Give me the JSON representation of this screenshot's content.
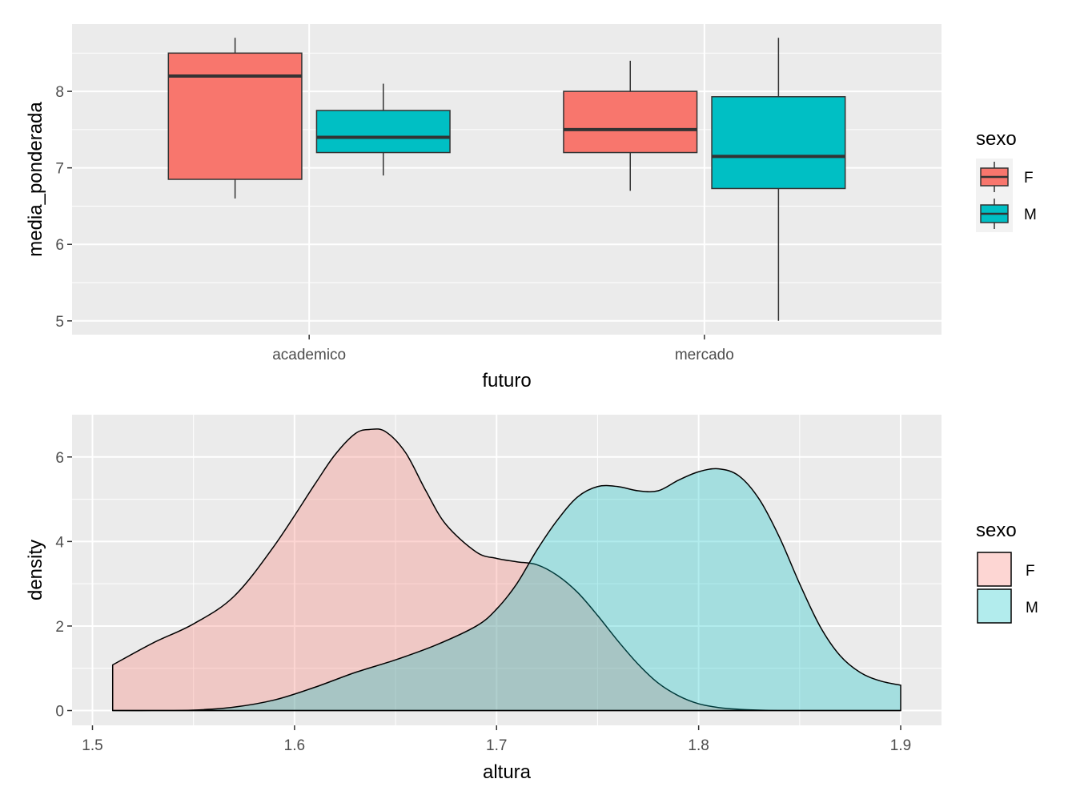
{
  "chart_data": [
    {
      "type": "boxplot",
      "xlabel": "futuro",
      "ylabel": "media_ponderada",
      "categories": [
        "academico",
        "mercado"
      ],
      "ylim": [
        4.82,
        8.88
      ],
      "yticks": [
        5,
        6,
        7,
        8
      ],
      "grid": true,
      "legend": {
        "title": "sexo",
        "position": "right"
      },
      "series": [
        {
          "name": "F",
          "color": "#F8766D",
          "boxes": [
            {
              "category": "academico",
              "min": 6.6,
              "q1": 6.85,
              "median": 8.2,
              "q3": 8.5,
              "max": 8.7
            },
            {
              "category": "mercado",
              "min": 6.7,
              "q1": 7.2,
              "median": 7.5,
              "q3": 8.0,
              "max": 8.4
            }
          ]
        },
        {
          "name": "M",
          "color": "#00BFC4",
          "boxes": [
            {
              "category": "academico",
              "min": 6.9,
              "q1": 7.2,
              "median": 7.4,
              "q3": 7.75,
              "max": 8.1
            },
            {
              "category": "mercado",
              "min": 5.0,
              "q1": 6.73,
              "median": 7.15,
              "q3": 7.93,
              "max": 8.7
            }
          ]
        }
      ]
    },
    {
      "type": "area",
      "xlabel": "altura",
      "ylabel": "density",
      "xlim": [
        1.4899,
        1.9202
      ],
      "ylim": [
        -0.35,
        7.0
      ],
      "xticks": [
        1.5,
        1.6,
        1.7,
        1.8,
        1.9
      ],
      "yticks": [
        0,
        2,
        4,
        6
      ],
      "grid": true,
      "legend": {
        "title": "sexo",
        "position": "right"
      },
      "series": [
        {
          "name": "F",
          "color": "#F8766D",
          "x": [
            1.51,
            1.53,
            1.55,
            1.57,
            1.59,
            1.61,
            1.62,
            1.63,
            1.637,
            1.645,
            1.655,
            1.665,
            1.675,
            1.69,
            1.7,
            1.71,
            1.72,
            1.73,
            1.74,
            1.75,
            1.76,
            1.77,
            1.78,
            1.79,
            1.8,
            1.81,
            1.82,
            1.83,
            1.84,
            1.85,
            1.86,
            1.87,
            1.88,
            1.89,
            1.9
          ],
          "y": [
            1.08,
            1.6,
            2.05,
            2.7,
            3.9,
            5.35,
            6.05,
            6.55,
            6.65,
            6.6,
            6.1,
            5.2,
            4.4,
            3.75,
            3.6,
            3.52,
            3.45,
            3.2,
            2.8,
            2.25,
            1.65,
            1.1,
            0.65,
            0.35,
            0.16,
            0.07,
            0.03,
            0.01,
            0.0,
            0.0,
            0.0,
            0.0,
            0.0,
            0.0,
            0.0
          ]
        },
        {
          "name": "M",
          "color": "#00BFC4",
          "x": [
            1.51,
            1.53,
            1.55,
            1.57,
            1.59,
            1.61,
            1.63,
            1.65,
            1.67,
            1.69,
            1.7,
            1.71,
            1.72,
            1.73,
            1.74,
            1.75,
            1.76,
            1.77,
            1.78,
            1.79,
            1.8,
            1.81,
            1.82,
            1.83,
            1.84,
            1.85,
            1.86,
            1.87,
            1.88,
            1.89,
            1.9
          ],
          "y": [
            0.0,
            0.0,
            0.01,
            0.08,
            0.25,
            0.55,
            0.9,
            1.2,
            1.55,
            2.0,
            2.4,
            3.0,
            3.8,
            4.5,
            5.05,
            5.3,
            5.3,
            5.2,
            5.2,
            5.45,
            5.65,
            5.72,
            5.55,
            5.0,
            4.1,
            3.0,
            2.0,
            1.3,
            0.9,
            0.7,
            0.6
          ]
        }
      ]
    }
  ]
}
